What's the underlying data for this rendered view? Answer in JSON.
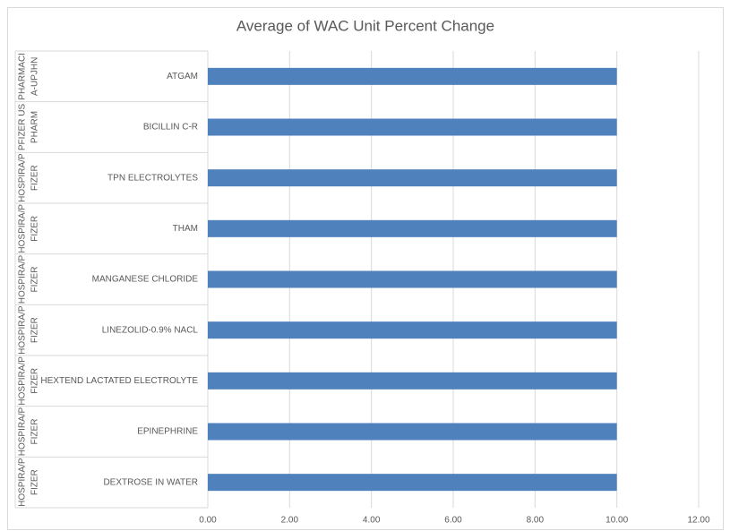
{
  "chart_data": {
    "type": "bar",
    "orientation": "horizontal",
    "title": "Average of WAC Unit Percent Change",
    "groups": [
      [
        "PHARMACI",
        "A-UPJHN"
      ],
      [
        "PFIZER US",
        "PHARM"
      ],
      [
        "HOSPIRA/P",
        "FIZER"
      ],
      [
        "HOSPIRA/P",
        "FIZER"
      ],
      [
        "HOSPIRA/P",
        "FIZER"
      ],
      [
        "HOSPIRA/P",
        "FIZER"
      ],
      [
        "HOSPIRA/P",
        "FIZER"
      ],
      [
        "HOSPIRA/P",
        "FIZER"
      ],
      [
        "HOSPIRA/P",
        "FIZER"
      ]
    ],
    "categories": [
      "ATGAM",
      "BICILLIN C-R",
      "TPN ELECTROLYTES",
      "THAM",
      "MANGANESE CHLORIDE",
      "LINEZOLID-0.9% NACL",
      "HEXTEND LACTATED ELECTROLYTE",
      "EPINEPHRINE",
      "DEXTROSE IN WATER"
    ],
    "values": [
      10,
      10,
      10,
      10,
      10,
      10,
      10,
      10,
      10
    ],
    "color": "#4f81bd",
    "xlim": [
      0,
      12
    ],
    "xticks": [
      {
        "value": 0,
        "label": "0.00"
      },
      {
        "value": 2,
        "label": "2.00"
      },
      {
        "value": 4,
        "label": "4.00"
      },
      {
        "value": 6,
        "label": "6.00"
      },
      {
        "value": 8,
        "label": "8.00"
      },
      {
        "value": 10,
        "label": "10.00"
      },
      {
        "value": 12,
        "label": "12.00"
      }
    ],
    "grid": true
  }
}
